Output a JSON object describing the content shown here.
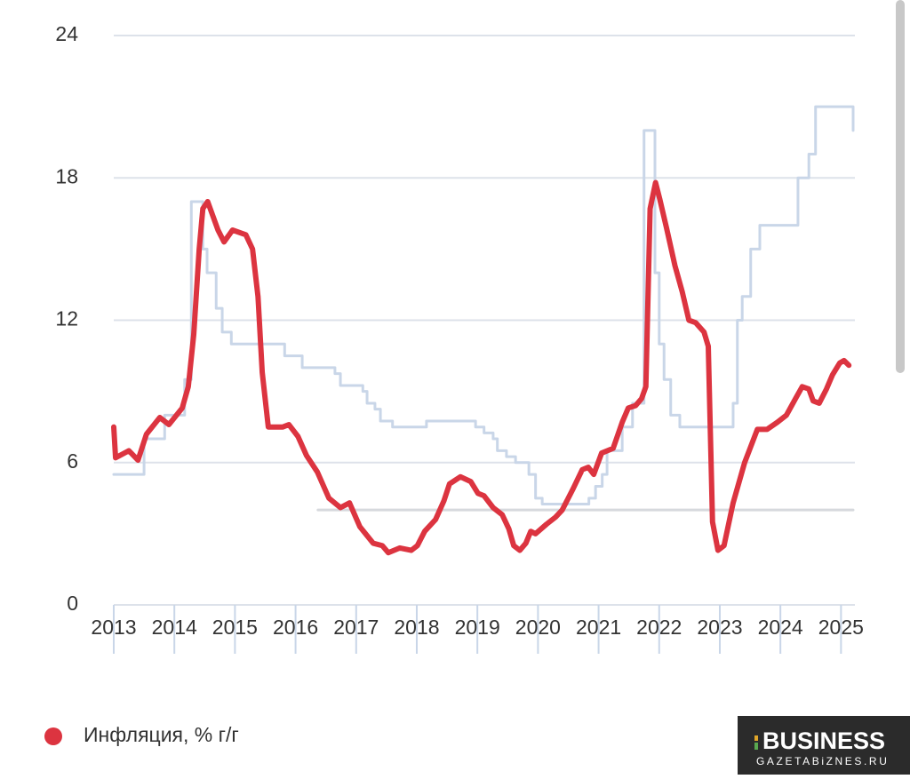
{
  "chart_data": {
    "type": "line",
    "xlim": [
      2013,
      2025.2
    ],
    "xticks": [
      2013,
      2014,
      2015,
      2016,
      2017,
      2018,
      2019,
      2020,
      2021,
      2022,
      2023,
      2024,
      2025
    ],
    "ylim": [
      0,
      24
    ],
    "yticks": [
      0,
      6,
      12,
      18,
      24
    ],
    "grid": true,
    "series": [
      {
        "color": "#c9d6e8",
        "step": true,
        "x": [
          2013.0,
          2013.5,
          2013.84,
          2014.17,
          2014.28,
          2014.47,
          2014.54,
          2014.69,
          2014.79,
          2014.94,
          2015.82,
          2016.11,
          2016.65,
          2016.74,
          2017.11,
          2017.18,
          2017.31,
          2017.4,
          2017.6,
          2018.16,
          2018.97,
          2019.11,
          2019.26,
          2019.33,
          2019.48,
          2019.63,
          2019.85,
          2019.96,
          2020.07,
          2020.84,
          2020.95,
          2021.06,
          2021.14,
          2021.39,
          2021.56,
          2021.75,
          2021.93,
          2022.0,
          2022.08,
          2022.19,
          2022.34,
          2023.22,
          2023.29,
          2023.37,
          2023.51,
          2023.66,
          2024.29,
          2024.47,
          2024.58,
          2025.2
        ],
        "values": [
          5.5,
          7.0,
          8.0,
          9.5,
          17,
          15,
          14,
          12.5,
          11.5,
          11,
          10.5,
          10,
          9.75,
          9.25,
          9.0,
          8.5,
          8.25,
          7.75,
          7.5,
          7.75,
          7.5,
          7.25,
          7.0,
          6.5,
          6.25,
          6.0,
          5.5,
          4.5,
          4.25,
          4.5,
          5.0,
          5.5,
          6.5,
          7.5,
          8.5,
          20,
          14,
          11,
          9.5,
          8,
          7.5,
          8.5,
          12,
          13,
          15,
          16,
          18,
          19,
          21,
          20
        ]
      },
      {
        "color": "#d6d9dd",
        "x": [
          2016.37,
          2025.2
        ],
        "values": [
          4,
          4
        ]
      },
      {
        "name": "Инфляция, % г/г",
        "color": "#dc3440",
        "x": [
          2013.0,
          2013.03,
          2013.25,
          2013.4,
          2013.54,
          2013.76,
          2013.91,
          2014.13,
          2014.23,
          2014.32,
          2014.41,
          2014.47,
          2014.55,
          2014.72,
          2014.82,
          2014.96,
          2015.18,
          2015.29,
          2015.38,
          2015.45,
          2015.55,
          2015.79,
          2015.89,
          2016.04,
          2016.18,
          2016.36,
          2016.55,
          2016.74,
          2016.89,
          2017.06,
          2017.28,
          2017.43,
          2017.53,
          2017.72,
          2017.91,
          2018.01,
          2018.13,
          2018.31,
          2018.45,
          2018.54,
          2018.72,
          2018.89,
          2019.01,
          2019.11,
          2019.26,
          2019.41,
          2019.52,
          2019.6,
          2019.7,
          2019.8,
          2019.88,
          2019.96,
          2020.14,
          2020.29,
          2020.4,
          2020.58,
          2020.73,
          2020.83,
          2020.92,
          2021.05,
          2021.24,
          2021.39,
          2021.49,
          2021.61,
          2021.71,
          2021.78,
          2021.85,
          2021.94,
          2022.01,
          2022.12,
          2022.26,
          2022.38,
          2022.49,
          2022.6,
          2022.74,
          2022.81,
          2022.88,
          2022.97,
          2023.07,
          2023.22,
          2023.41,
          2023.62,
          2023.78,
          2023.95,
          2024.1,
          2024.25,
          2024.36,
          2024.47,
          2024.54,
          2024.64,
          2024.76,
          2024.86,
          2024.98,
          2025.05,
          2025.13
        ],
        "values": [
          7.5,
          6.2,
          6.5,
          6.1,
          7.2,
          7.9,
          7.6,
          8.3,
          9.2,
          11.4,
          15,
          16.7,
          17,
          15.8,
          15.3,
          15.8,
          15.6,
          15,
          13,
          9.8,
          7.5,
          7.5,
          7.6,
          7.1,
          6.3,
          5.6,
          4.5,
          4.1,
          4.3,
          3.3,
          2.6,
          2.5,
          2.2,
          2.4,
          2.3,
          2.5,
          3.1,
          3.6,
          4.4,
          5.1,
          5.4,
          5.2,
          4.7,
          4.6,
          4.1,
          3.8,
          3.2,
          2.5,
          2.3,
          2.6,
          3.1,
          3.0,
          3.4,
          3.7,
          4.0,
          4.9,
          5.7,
          5.8,
          5.5,
          6.4,
          6.6,
          7.7,
          8.3,
          8.4,
          8.7,
          9.2,
          16.7,
          17.8,
          17.1,
          15.9,
          14.3,
          13.2,
          12.0,
          11.9,
          11.5,
          10.9,
          3.5,
          2.3,
          2.5,
          4.3,
          6.0,
          7.4,
          7.4,
          7.7,
          8.0,
          8.7,
          9.2,
          9.1,
          8.6,
          8.5,
          9.1,
          9.7,
          10.2,
          10.3,
          10.1
        ]
      }
    ]
  },
  "watermark": {
    "brand": "BUSINESS",
    "site": "GAZETABiZNES.RU"
  }
}
